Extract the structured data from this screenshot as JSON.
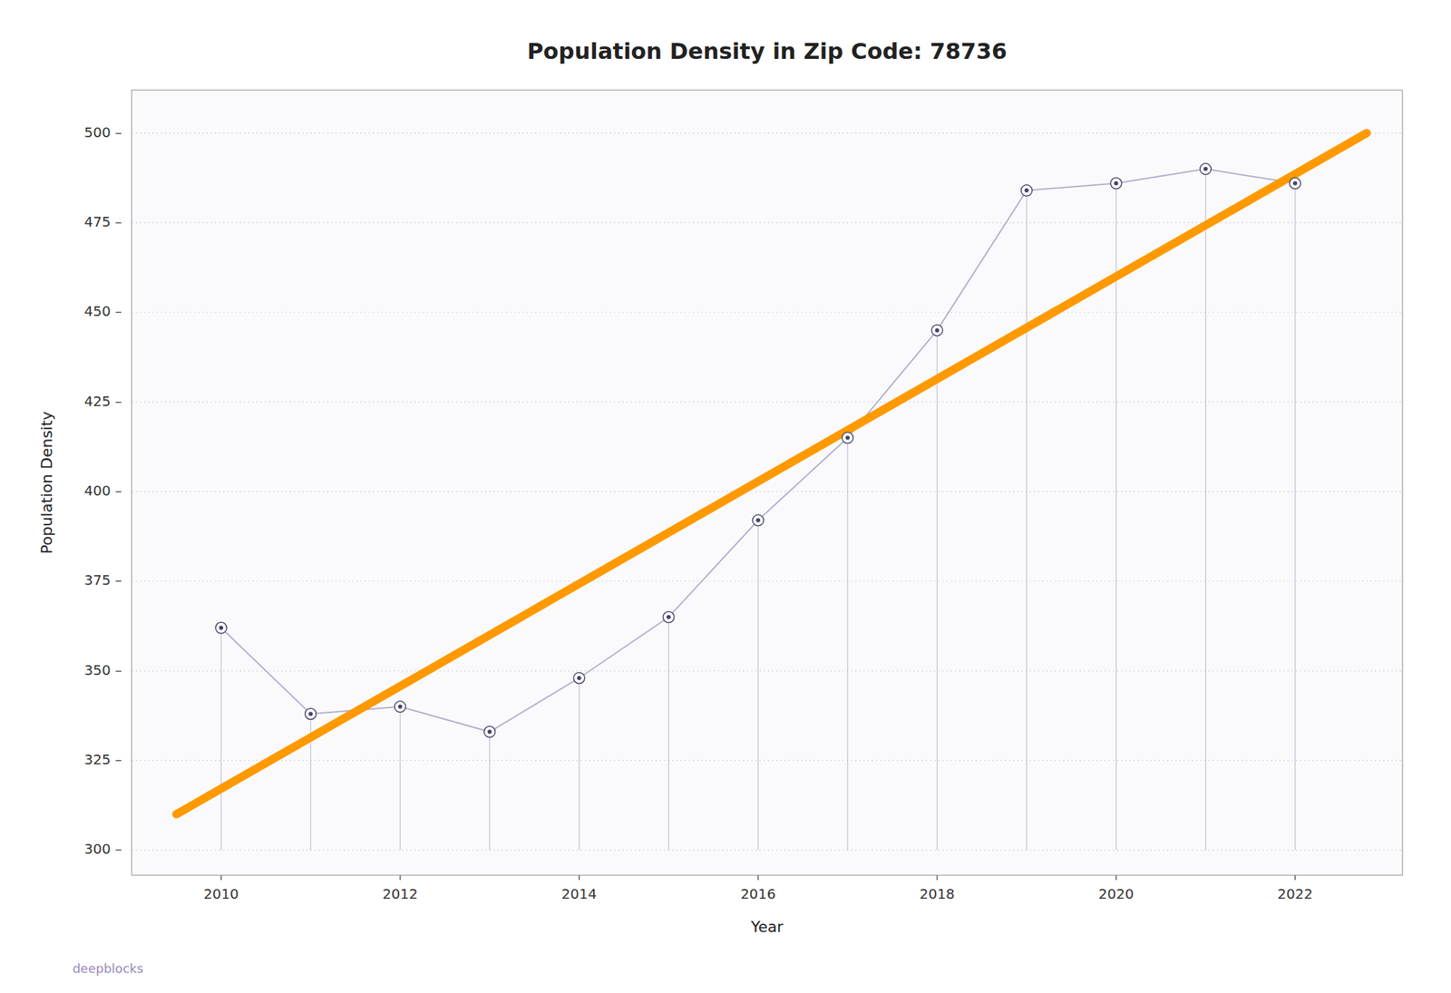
{
  "chart_data": {
    "type": "line",
    "title": "Population Density in Zip Code: 78736",
    "xlabel": "Year",
    "ylabel": "Population Density",
    "x": [
      2010,
      2011,
      2012,
      2013,
      2014,
      2015,
      2016,
      2017,
      2018,
      2019,
      2020,
      2021,
      2022
    ],
    "values": [
      362,
      338,
      340,
      333,
      348,
      365,
      392,
      415,
      445,
      484,
      486,
      490,
      486
    ],
    "color": "#b0b0cc",
    "marker": "circle",
    "baseline": 300,
    "trend_line": {
      "x": [
        2009.5,
        2022.8
      ],
      "values": [
        310,
        500
      ],
      "color": "#ff9900"
    },
    "xlim": [
      2009.0,
      2023.2
    ],
    "ylim": [
      293,
      512
    ],
    "xticks": [
      2010,
      2012,
      2014,
      2016,
      2018,
      2020,
      2022
    ],
    "yticks": [
      {
        "value": 300,
        "label": "300 –"
      },
      {
        "value": 325,
        "label": "325 –"
      },
      {
        "value": 350,
        "label": "350 –"
      },
      {
        "value": 375,
        "label": "375 –"
      },
      {
        "value": 400,
        "label": "400 –"
      },
      {
        "value": 425,
        "label": "425 –"
      },
      {
        "value": 450,
        "label": "450 –"
      },
      {
        "value": 475,
        "label": "475 –"
      },
      {
        "value": 500,
        "label": "500 –"
      }
    ],
    "grid": true,
    "watermark": "deepblocks"
  }
}
